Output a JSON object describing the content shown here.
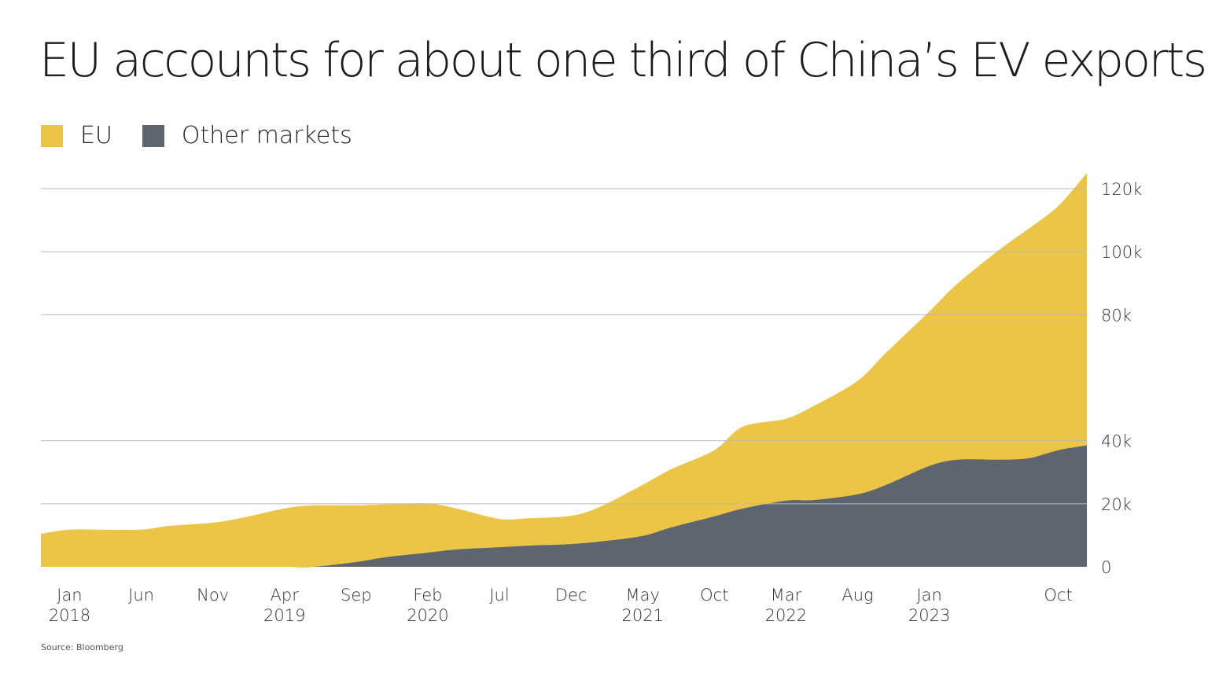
{
  "title": "EU accounts for about one third of China’s EV exports",
  "legend": {
    "items": [
      {
        "label": "EU",
        "color": "#ECC546"
      },
      {
        "label": "Other markets",
        "color": "#5C6570"
      }
    ]
  },
  "source": "Source: Bloomberg",
  "chart_data": {
    "type": "area",
    "stacked": true,
    "title": "EU accounts for about one third of China’s EV exports",
    "xlabel": "",
    "ylabel": "",
    "ylim": [
      0,
      125000
    ],
    "yticks": [
      0,
      20000,
      40000,
      80000,
      100000,
      120000
    ],
    "ytick_labels": [
      "0",
      "20k",
      "40k",
      "80k",
      "100k",
      "120k"
    ],
    "y_axis_position": "right",
    "grid": true,
    "legend_position": "top-left",
    "x_start": "2017-11",
    "x_end": "2023-12",
    "x_ticks": [
      {
        "month": "2018-01",
        "line1": "Jan",
        "line2": "2018"
      },
      {
        "month": "2018-06",
        "line1": "Jun",
        "line2": ""
      },
      {
        "month": "2018-11",
        "line1": "Nov",
        "line2": ""
      },
      {
        "month": "2019-04",
        "line1": "Apr",
        "line2": "2019"
      },
      {
        "month": "2019-09",
        "line1": "Sep",
        "line2": ""
      },
      {
        "month": "2020-02",
        "line1": "Feb",
        "line2": "2020"
      },
      {
        "month": "2020-07",
        "line1": "Jul",
        "line2": ""
      },
      {
        "month": "2020-12",
        "line1": "Dec",
        "line2": ""
      },
      {
        "month": "2021-05",
        "line1": "May",
        "line2": "2021"
      },
      {
        "month": "2021-10",
        "line1": "Oct",
        "line2": ""
      },
      {
        "month": "2022-03",
        "line1": "Mar",
        "line2": "2022"
      },
      {
        "month": "2022-08",
        "line1": "Aug",
        "line2": ""
      },
      {
        "month": "2023-01",
        "line1": "Jan",
        "line2": "2023"
      },
      {
        "month": "2023-10",
        "line1": "Oct",
        "line2": ""
      }
    ],
    "x": [
      "2017-11",
      "2018-01",
      "2018-03",
      "2018-06",
      "2018-08",
      "2018-11",
      "2019-01",
      "2019-04",
      "2019-06",
      "2019-09",
      "2019-11",
      "2020-02",
      "2020-04",
      "2020-07",
      "2020-09",
      "2020-12",
      "2021-02",
      "2021-05",
      "2021-07",
      "2021-10",
      "2021-12",
      "2022-03",
      "2022-05",
      "2022-08",
      "2022-10",
      "2023-01",
      "2023-03",
      "2023-06",
      "2023-08",
      "2023-10",
      "2023-12"
    ],
    "series": [
      {
        "name": "Other markets",
        "color": "#5C6570",
        "values": [
          0,
          0,
          0,
          0,
          0,
          0,
          0,
          0,
          0,
          1500,
          3000,
          4500,
          5500,
          6200,
          6700,
          7200,
          8000,
          9800,
          12500,
          16000,
          18500,
          21000,
          21200,
          23000,
          26000,
          32000,
          34000,
          34000,
          34500,
          37000,
          38500
        ]
      },
      {
        "name": "EU",
        "color": "#ECC546",
        "values": [
          10500,
          11800,
          11800,
          11800,
          13000,
          14000,
          15500,
          18500,
          19500,
          18000,
          16800,
          15600,
          13000,
          9000,
          8700,
          9000,
          11000,
          16200,
          18500,
          21000,
          26000,
          26000,
          30000,
          36000,
          42000,
          49000,
          56000,
          67000,
          73000,
          77500,
          86500
        ]
      }
    ]
  }
}
